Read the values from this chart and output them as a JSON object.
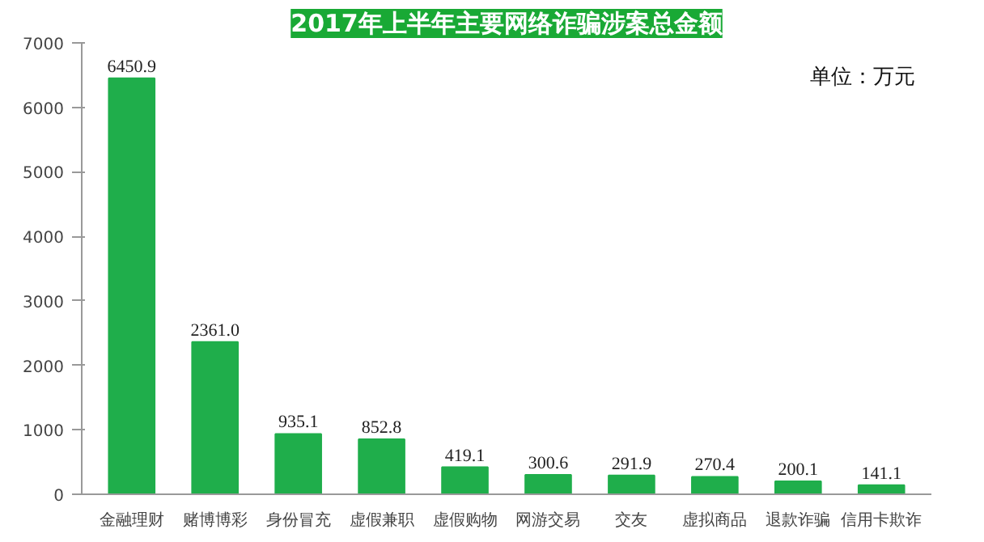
{
  "chart_data": {
    "type": "bar",
    "title": "2017年上半年主要网络诈骗涉案总金额",
    "categories": [
      "金融理财",
      "赌博博彩",
      "身份冒充",
      "虚假兼职",
      "虚假购物",
      "网游交易",
      "交友",
      "虚拟商品",
      "退款诈骗",
      "信用卡欺诈"
    ],
    "values": [
      6450.9,
      2361.0,
      935.1,
      852.8,
      419.1,
      300.6,
      291.9,
      270.4,
      200.1,
      141.1
    ],
    "value_labels": [
      "6450.9",
      "2361.0",
      "935.1",
      "852.8",
      "419.1",
      "300.6",
      "291.9",
      "270.4",
      "200.1",
      "141.1"
    ],
    "color": "#1fae4b",
    "ylim": [
      0,
      7000
    ],
    "yticks": [
      0,
      1000,
      2000,
      3000,
      4000,
      5000,
      6000,
      7000
    ],
    "annotations": [
      "单位：万元"
    ]
  }
}
